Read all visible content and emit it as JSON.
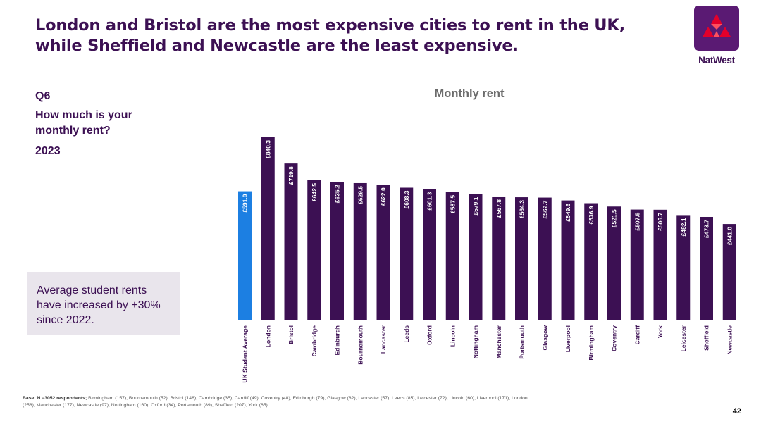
{
  "slide": {
    "headline": "London and Bristol are the most expensive cities to rent in the UK, while Sheffield and Newcastle are the least expensive.",
    "brand": "NatWest",
    "question_id": "Q6",
    "question_text": "How much is your monthly rent?",
    "year": "2023",
    "callout": "Average student rents have increased by +30% since 2022.",
    "base_label": "Base: N =3052 respondents;",
    "base_detail": "Birmingham (157),  Bournemouth (52), Bristol (148), Cambridge (35), Cardiff (49), Coventry (48),  Edinburgh (79), Glasgow (82), Lancaster (57), Leeds (85), Leicester (72), Lincoln (60), Liverpool (171), London (258), Manchester (177), Newcastle (97), Nottingham (160), Oxford (34), Portsmouth (89), Sheffield (207), York (65).",
    "page_number": "42"
  },
  "chart_data": {
    "type": "bar",
    "title": "Monthly rent",
    "xlabel": "",
    "ylabel": "",
    "ylim": [
      0,
      840.3
    ],
    "value_prefix": "£",
    "categories": [
      "UK Student Average",
      "London",
      "Bristol",
      "Cambridge",
      "Edinburgh",
      "Bournemouth",
      "Lancaster",
      "Leeds",
      "Oxford",
      "Lincoln",
      "Nottingham",
      "Manchester",
      "Portsmouth",
      "Glasgow",
      "Liverpool",
      "Birmingham",
      "Coventry",
      "Cardiff",
      "York",
      "Leicester",
      "Sheffield",
      "Newcastle"
    ],
    "values": [
      591.9,
      840.3,
      719.8,
      642.5,
      635.2,
      629.5,
      622.0,
      608.3,
      601.3,
      587.5,
      579.1,
      567.8,
      564.3,
      562.7,
      549.6,
      536.9,
      521.5,
      507.5,
      506.7,
      482.1,
      473.7,
      441.0
    ],
    "colors": {
      "highlight": "#1c7fe2",
      "default": "#3c1053",
      "label": "#ffffff",
      "category_label": "#3c1053"
    },
    "highlight_index": 0
  }
}
